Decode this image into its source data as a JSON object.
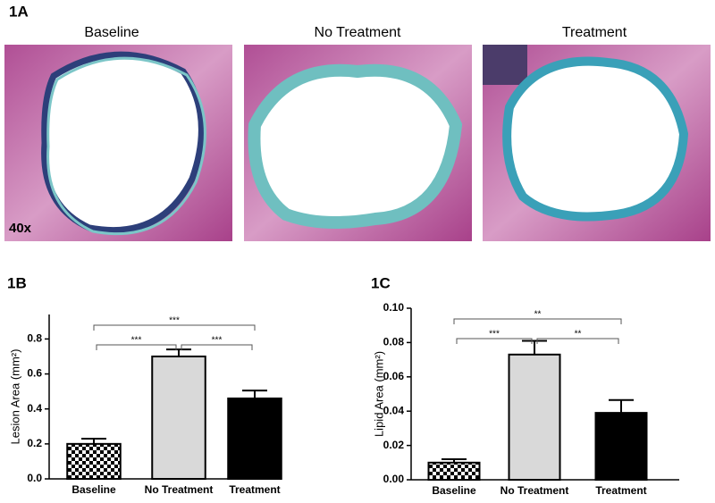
{
  "panel_a": {
    "label": "1A",
    "captions": [
      "Baseline",
      "No Treatment",
      "Treatment"
    ],
    "magnification": "40x"
  },
  "chart_data": [
    {
      "type": "bar",
      "panel": "1B",
      "ylabel": "Lesion Area (mm²)",
      "categories": [
        "Baseline",
        "No Treatment",
        "Treatment"
      ],
      "values": [
        0.2,
        0.7,
        0.46
      ],
      "errors": [
        0.03,
        0.04,
        0.045
      ],
      "colors": [
        "checkerboard",
        "#d9d9d9",
        "#000000"
      ],
      "ylim": [
        0,
        0.94
      ],
      "yticks": [
        {
          "value": 0,
          "label": "0.0"
        },
        0.2,
        0.4,
        0.6,
        0.8
      ],
      "brackets": [
        {
          "pair": [
            0,
            2
          ],
          "label": "***"
        },
        {
          "pair": [
            0,
            1
          ],
          "label": "***"
        },
        {
          "pair": [
            1,
            2
          ],
          "label": "***"
        }
      ]
    },
    {
      "type": "bar",
      "panel": "1C",
      "ylabel": "Lipid Area (mm²)",
      "categories": [
        "Baseline",
        "No Treatment",
        "Treatment"
      ],
      "values": [
        0.01,
        0.073,
        0.039
      ],
      "errors": [
        0.002,
        0.008,
        0.0075
      ],
      "colors": [
        "checkerboard",
        "#d9d9d9",
        "#000000"
      ],
      "ylim": [
        0,
        0.1
      ],
      "yticks": [
        {
          "value": 0,
          "label": "0.00"
        },
        0.02,
        0.04,
        0.06,
        0.08,
        {
          "value": 0.1,
          "label": "0.10"
        }
      ],
      "brackets": [
        {
          "pair": [
            0,
            2
          ],
          "label": "**"
        },
        {
          "pair": [
            0,
            1
          ],
          "label": "***"
        },
        {
          "pair": [
            1,
            2
          ],
          "label": "**"
        }
      ]
    }
  ]
}
